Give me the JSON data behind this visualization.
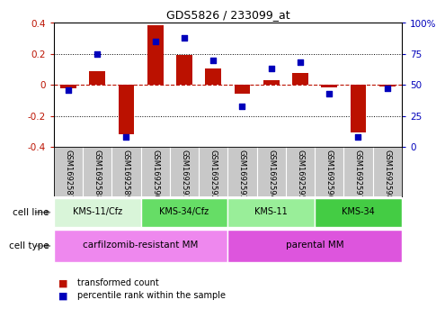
{
  "title": "GDS5826 / 233099_at",
  "samples": [
    "GSM1692587",
    "GSM1692588",
    "GSM1692589",
    "GSM1692590",
    "GSM1692591",
    "GSM1692592",
    "GSM1692593",
    "GSM1692594",
    "GSM1692595",
    "GSM1692596",
    "GSM1692597",
    "GSM1692598"
  ],
  "transformed_count": [
    -0.02,
    0.09,
    -0.32,
    0.385,
    0.19,
    0.105,
    -0.055,
    0.03,
    0.075,
    -0.015,
    -0.31,
    -0.01
  ],
  "percentile_rank": [
    46,
    75,
    8,
    85,
    88,
    70,
    33,
    63,
    68,
    43,
    8,
    47
  ],
  "cell_lines": [
    {
      "label": "KMS-11/Cfz",
      "start": 0,
      "end": 2,
      "color": "#d9f5d9"
    },
    {
      "label": "KMS-34/Cfz",
      "start": 3,
      "end": 5,
      "color": "#66dd66"
    },
    {
      "label": "KMS-11",
      "start": 6,
      "end": 8,
      "color": "#99ee99"
    },
    {
      "label": "KMS-34",
      "start": 9,
      "end": 11,
      "color": "#44cc44"
    }
  ],
  "cell_types": [
    {
      "label": "carfilzomib-resistant MM",
      "start": 0,
      "end": 5,
      "color": "#ee88ee"
    },
    {
      "label": "parental MM",
      "start": 6,
      "end": 11,
      "color": "#dd55dd"
    }
  ],
  "bar_color": "#bb1100",
  "dot_color": "#0000bb",
  "ylim_left": [
    -0.4,
    0.4
  ],
  "ylim_right": [
    0,
    100
  ],
  "yticks_left": [
    -0.4,
    -0.2,
    0.0,
    0.2,
    0.4
  ],
  "yticks_right": [
    0,
    25,
    50,
    75,
    100
  ],
  "ytick_labels_right": [
    "0",
    "25",
    "50",
    "75",
    "100%"
  ],
  "background_color": "#ffffff",
  "sample_bg_color": "#c8c8c8",
  "plot_bg_color": "#ffffff"
}
